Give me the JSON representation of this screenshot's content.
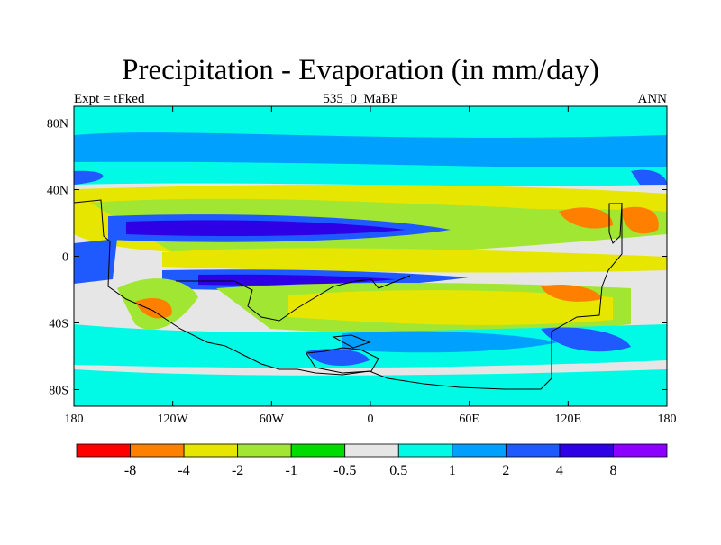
{
  "title": "Precipitation - Evaporation (in mm/day)",
  "subtitle_left": "Expt = tFked",
  "subtitle_center": "535_0_MaBP",
  "subtitle_right": "ANN",
  "map": {
    "lon_range": [
      -180,
      180
    ],
    "lat_range": [
      -90,
      90
    ],
    "x_ticks": [
      {
        "lon": -180,
        "label": "180"
      },
      {
        "lon": -120,
        "label": "120W"
      },
      {
        "lon": -60,
        "label": "60W"
      },
      {
        "lon": 0,
        "label": "0"
      },
      {
        "lon": 60,
        "label": "60E"
      },
      {
        "lon": 120,
        "label": "120E"
      },
      {
        "lon": 180,
        "label": "180"
      }
    ],
    "y_ticks": [
      {
        "lat": 80,
        "label": "80N"
      },
      {
        "lat": 40,
        "label": "40N"
      },
      {
        "lat": 0,
        "label": "0"
      },
      {
        "lat": -40,
        "label": "40S"
      },
      {
        "lat": -80,
        "label": "80S"
      }
    ],
    "colors": {
      "lt_-8": "#ff0000",
      "-8_-4": "#ff8000",
      "-4_-2": "#e6e600",
      "-2_-1": "#a0e632",
      "-1_-0.5": "#00dc00",
      "-0.5_0.5": "#e6e6e6",
      "0.5_1": "#00fae6",
      "1_2": "#00a0ff",
      "2_4": "#1e5aff",
      "4_8": "#2d00e6",
      "gt_8": "#8c00ff"
    }
  },
  "colorbar": {
    "colors": [
      "#ff0000",
      "#ff8000",
      "#e6e600",
      "#a0e632",
      "#00dc00",
      "#e6e6e6",
      "#00fae6",
      "#00a0ff",
      "#1e5aff",
      "#2d00e6",
      "#8c00ff"
    ],
    "labels": [
      "-8",
      "-4",
      "-2",
      "-1",
      "-0.5",
      "0.5",
      "1",
      "2",
      "4",
      "8"
    ]
  }
}
